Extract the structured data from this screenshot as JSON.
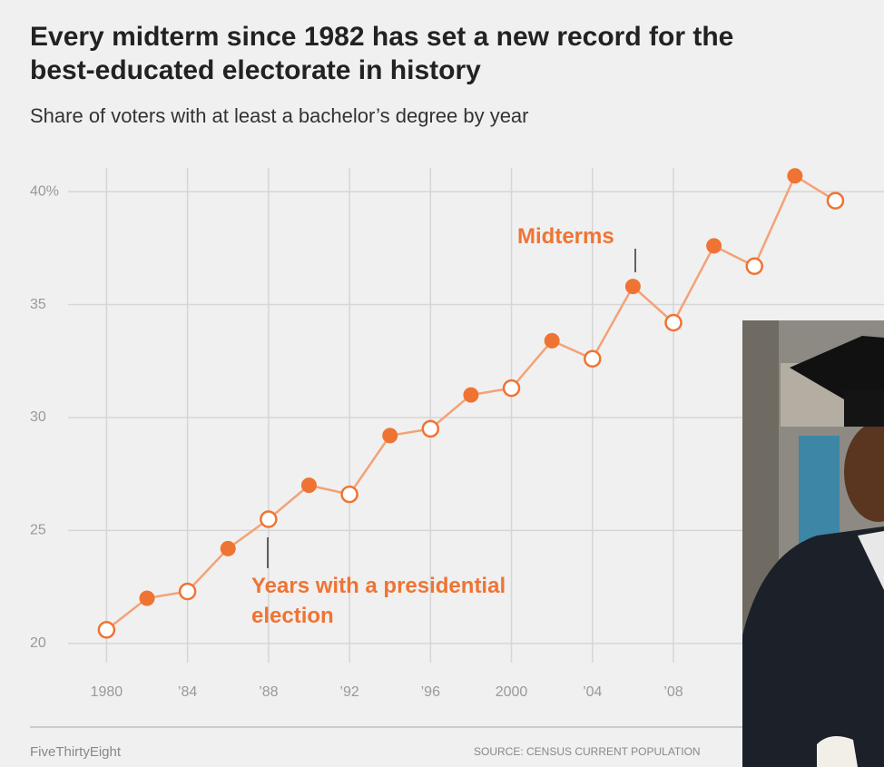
{
  "chart_data": {
    "type": "line",
    "title": "Every midterm since 1982 has set a new record for the best-educated electorate in history",
    "subtitle": "Share of voters with at least a bachelor’s degree by year",
    "series": [
      {
        "name": "Years with a presidential election",
        "color": "#ef7433",
        "filled": false,
        "x": [
          1980,
          1984,
          1988,
          1992,
          1996,
          2000,
          2004,
          2008,
          2012,
          2016
        ],
        "values": [
          20.6,
          22.3,
          25.5,
          26.6,
          29.5,
          31.3,
          32.6,
          34.2,
          36.7,
          39.6
        ]
      },
      {
        "name": "Midterms",
        "color": "#ef7433",
        "filled": true,
        "x": [
          1982,
          1986,
          1990,
          1994,
          1998,
          2002,
          2006,
          2010,
          2014
        ],
        "values": [
          22.0,
          24.2,
          27.0,
          29.2,
          31.0,
          33.4,
          35.8,
          37.6,
          40.7
        ]
      }
    ],
    "line_color": "#f3a277",
    "xlim": [
      1978.1,
      2018.4
    ],
    "ylim": [
      19.15,
      41.05
    ],
    "xticks": [
      {
        "value": 1980,
        "label": "1980"
      },
      {
        "value": 1984,
        "label": "’84"
      },
      {
        "value": 1988,
        "label": "’88"
      },
      {
        "value": 1992,
        "label": "’92"
      },
      {
        "value": 1996,
        "label": "’96"
      },
      {
        "value": 2000,
        "label": "2000"
      },
      {
        "value": 2004,
        "label": "’04"
      },
      {
        "value": 2008,
        "label": "’08"
      }
    ],
    "yticks": [
      20,
      25,
      30,
      35,
      {
        "value": 40,
        "label": "40%"
      }
    ],
    "grid": true,
    "credit": "FiveThirtyEight",
    "source": "SOURCE: CENSUS CURRENT POPULATION"
  }
}
